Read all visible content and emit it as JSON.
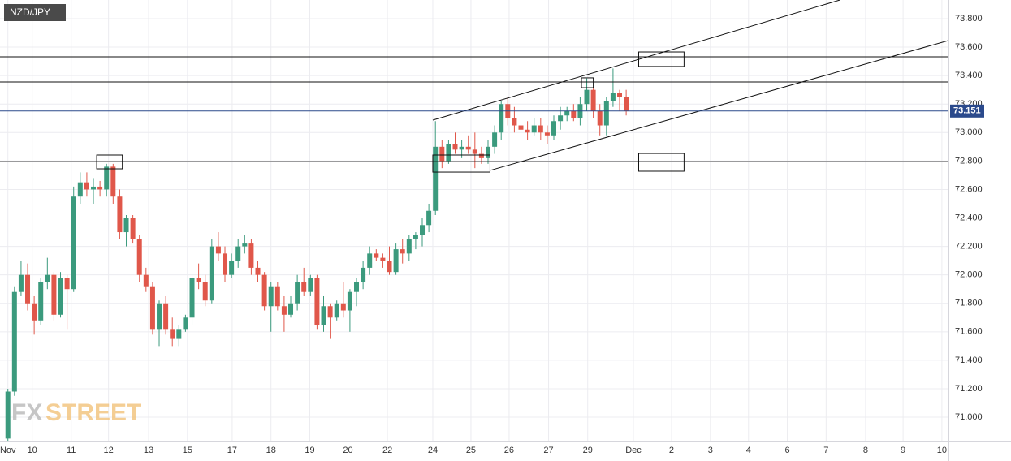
{
  "chart_data": {
    "type": "candlestick",
    "symbol": "NZD/JPY",
    "watermark": [
      "FX",
      "STREET"
    ],
    "up_color": "#3b9a7d",
    "down_color": "#e0574a",
    "grid": true,
    "xlim": [
      -1.2,
      143
    ],
    "xticks": [
      {
        "value": 0,
        "label": "Nov"
      },
      {
        "value": 3.7,
        "label": "10"
      },
      {
        "value": 9.63,
        "label": "11"
      },
      {
        "value": 15.3,
        "label": "12"
      },
      {
        "value": 21.4,
        "label": "13"
      },
      {
        "value": 27.3,
        "label": "15"
      },
      {
        "value": 34.1,
        "label": "17"
      },
      {
        "value": 40,
        "label": "18"
      },
      {
        "value": 45.9,
        "label": "19"
      },
      {
        "value": 51.7,
        "label": "20"
      },
      {
        "value": 57.7,
        "label": "22"
      },
      {
        "value": 64.6,
        "label": "24"
      },
      {
        "value": 70.4,
        "label": "25"
      },
      {
        "value": 76.2,
        "label": "26"
      },
      {
        "value": 82.2,
        "label": "27"
      },
      {
        "value": 88.15,
        "label": "29"
      },
      {
        "value": 95.1,
        "label": "Dec"
      },
      {
        "value": 100.9,
        "label": "2"
      },
      {
        "value": 106.8,
        "label": "3"
      },
      {
        "value": 112.6,
        "label": "4"
      },
      {
        "value": 118.5,
        "label": "6"
      },
      {
        "value": 124.4,
        "label": "7"
      },
      {
        "value": 130.4,
        "label": "8"
      },
      {
        "value": 136.1,
        "label": "9"
      },
      {
        "value": 142,
        "label": "10"
      }
    ],
    "ylim": [
      70.835,
      73.931
    ],
    "yticks": [
      {
        "value": 71.0,
        "label": "71.000"
      },
      {
        "value": 71.2,
        "label": "71.200"
      },
      {
        "value": 71.4,
        "label": "71.400"
      },
      {
        "value": 71.6,
        "label": "71.600"
      },
      {
        "value": 71.8,
        "label": "71.800"
      },
      {
        "value": 72.0,
        "label": "72.000"
      },
      {
        "value": 72.2,
        "label": "72.200"
      },
      {
        "value": 72.4,
        "label": "72.400"
      },
      {
        "value": 72.6,
        "label": "72.600"
      },
      {
        "value": 72.8,
        "label": "72.800"
      },
      {
        "value": 73.0,
        "label": "73.000"
      },
      {
        "value": 73.2,
        "label": "73.200"
      },
      {
        "value": 73.4,
        "label": "73.400"
      },
      {
        "value": 73.6,
        "label": "73.600"
      },
      {
        "value": 73.8,
        "label": "73.800"
      }
    ],
    "last_price": 73.151,
    "last_price_color": "#2b4a8c",
    "open": [
      70.85,
      71.18,
      71.88,
      72.0,
      71.8,
      71.68,
      71.95,
      72.0,
      71.72,
      71.98,
      71.9,
      72.55,
      72.65,
      72.6,
      72.62,
      72.6,
      72.76,
      72.55,
      72.3,
      72.4,
      72.25,
      72.0,
      71.92,
      71.62,
      71.8,
      71.62,
      71.55,
      71.62,
      71.7,
      71.98,
      71.95,
      71.82,
      72.2,
      72.15,
      72.0,
      72.1,
      72.2,
      72.22,
      72.05,
      72.0,
      71.78,
      71.92,
      71.78,
      71.72,
      71.8,
      71.95,
      71.88,
      71.98,
      71.65,
      71.78,
      71.7,
      71.8,
      71.75,
      71.88,
      71.95,
      72.05,
      72.15,
      72.12,
      72.1,
      72.02,
      72.18,
      72.15,
      72.25,
      72.28,
      72.35,
      72.45,
      72.9,
      72.8,
      72.92,
      72.88,
      72.9,
      72.88,
      72.85,
      72.82,
      72.9,
      73.0,
      73.2,
      73.1,
      73.05,
      73.02,
      73.0,
      73.05,
      73.0,
      72.98,
      73.08,
      73.12,
      73.15,
      73.1,
      73.2,
      73.3,
      73.15,
      73.05,
      73.22,
      73.28,
      73.25
    ],
    "high": [
      71.2,
      71.92,
      72.1,
      72.08,
      71.85,
      71.98,
      72.12,
      72.02,
      72.02,
      72.0,
      72.62,
      72.72,
      72.72,
      72.68,
      72.66,
      72.78,
      72.78,
      72.6,
      72.42,
      72.42,
      72.28,
      72.05,
      71.95,
      71.82,
      71.85,
      71.7,
      71.65,
      71.72,
      72.0,
      72.08,
      72.0,
      72.25,
      72.3,
      72.2,
      72.15,
      72.25,
      72.28,
      72.25,
      72.1,
      72.02,
      71.95,
      71.95,
      71.85,
      71.85,
      72.0,
      72.05,
      72.0,
      72.0,
      71.85,
      71.8,
      71.82,
      71.95,
      71.9,
      71.98,
      72.1,
      72.2,
      72.18,
      72.15,
      72.2,
      72.22,
      72.25,
      72.28,
      72.3,
      72.4,
      72.5,
      73.08,
      72.95,
      72.95,
      73.0,
      72.95,
      72.98,
      73.0,
      72.9,
      72.95,
      73.05,
      73.22,
      73.25,
      73.18,
      73.1,
      73.08,
      73.1,
      73.1,
      73.05,
      73.12,
      73.18,
      73.18,
      73.2,
      73.25,
      73.38,
      73.32,
      73.2,
      73.25,
      73.45,
      73.3,
      73.3
    ],
    "low": [
      70.83,
      71.15,
      71.85,
      71.75,
      71.58,
      71.65,
      71.9,
      71.68,
      71.7,
      71.62,
      71.88,
      72.5,
      72.55,
      72.5,
      72.55,
      72.55,
      72.5,
      72.25,
      72.2,
      72.22,
      71.95,
      71.88,
      71.58,
      71.5,
      71.58,
      71.5,
      71.5,
      71.6,
      71.65,
      71.9,
      71.78,
      71.8,
      72.1,
      71.95,
      71.98,
      72.05,
      72.15,
      72.0,
      71.95,
      71.75,
      71.6,
      71.75,
      71.6,
      71.7,
      71.75,
      71.85,
      71.85,
      71.62,
      71.6,
      71.55,
      71.68,
      71.7,
      71.6,
      71.78,
      71.9,
      72.0,
      72.1,
      72.05,
      72.0,
      72.0,
      72.08,
      72.1,
      72.18,
      72.2,
      72.3,
      72.42,
      72.75,
      72.78,
      72.85,
      72.82,
      72.85,
      72.75,
      72.78,
      72.78,
      72.85,
      72.95,
      73.05,
      73.0,
      72.98,
      72.95,
      72.98,
      72.95,
      72.92,
      72.95,
      73.02,
      73.08,
      73.08,
      73.05,
      73.15,
      73.1,
      72.98,
      72.98,
      73.18,
      73.15,
      73.12
    ],
    "close": [
      71.18,
      71.88,
      72.0,
      71.8,
      71.68,
      71.95,
      72.0,
      71.72,
      71.98,
      71.9,
      72.55,
      72.65,
      72.6,
      72.62,
      72.6,
      72.76,
      72.55,
      72.3,
      72.4,
      72.25,
      72.0,
      71.92,
      71.62,
      71.8,
      71.62,
      71.55,
      71.62,
      71.7,
      71.98,
      71.95,
      71.82,
      72.2,
      72.15,
      72.0,
      72.1,
      72.2,
      72.22,
      72.05,
      72.0,
      71.78,
      71.92,
      71.78,
      71.72,
      71.8,
      71.95,
      71.88,
      71.98,
      71.65,
      71.78,
      71.7,
      71.8,
      71.75,
      71.88,
      71.95,
      72.05,
      72.15,
      72.12,
      72.1,
      72.02,
      72.18,
      72.15,
      72.25,
      72.28,
      72.35,
      72.45,
      72.9,
      72.8,
      72.92,
      72.88,
      72.9,
      72.88,
      72.85,
      72.82,
      72.9,
      73.0,
      73.2,
      73.1,
      73.05,
      73.02,
      73.0,
      73.05,
      73.0,
      72.98,
      73.08,
      73.12,
      73.15,
      73.1,
      73.2,
      73.3,
      73.15,
      73.05,
      73.22,
      73.28,
      73.25,
      73.15
    ],
    "levels": [
      73.532,
      73.355,
      72.796
    ],
    "trendlines": [
      {
        "x": [
          64.6,
          126.5
        ],
        "y": [
          73.087,
          73.931
        ]
      },
      {
        "x": [
          73.3,
          142.96
        ],
        "y": [
          72.734,
          73.646
        ]
      }
    ],
    "boxes": [
      {
        "x": [
          13.5,
          17.4
        ],
        "y": [
          72.842,
          72.745
        ]
      },
      {
        "x": [
          64.6,
          73.3
        ],
        "y": [
          72.842,
          72.722
        ]
      },
      {
        "x": [
          87.2,
          89.0
        ],
        "y": [
          73.384,
          73.315
        ]
      },
      {
        "x": [
          95.9,
          102.8
        ],
        "y": [
          73.566,
          73.464
        ]
      },
      {
        "x": [
          95.9,
          102.8
        ],
        "y": [
          72.853,
          72.728
        ]
      }
    ]
  }
}
